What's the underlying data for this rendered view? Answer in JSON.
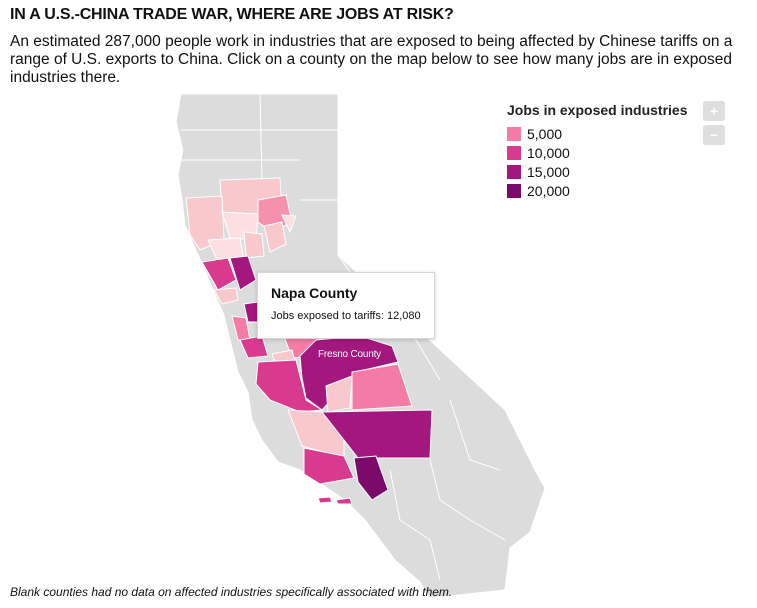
{
  "header": {
    "title": "IN A U.S.-CHINA TRADE WAR, WHERE ARE JOBS AT RISK?",
    "subtitle": "An estimated 287,000 people work in industries that are exposed to being affected by Chinese tariffs on a range of U.S. exports to China. Click on a county on the map below to see how many jobs are in exposed industries there."
  },
  "legend": {
    "title": "Jobs in exposed industries",
    "items": [
      {
        "label": "5,000",
        "color": "#f47ba6"
      },
      {
        "label": "10,000",
        "color": "#d93a8e"
      },
      {
        "label": "15,000",
        "color": "#a3177f"
      },
      {
        "label": "20,000",
        "color": "#7a0a6b"
      }
    ]
  },
  "zoom": {
    "in_label": "+",
    "out_label": "−"
  },
  "tooltip": {
    "county": "Napa County",
    "text": "Jobs exposed to tariffs: 12,080"
  },
  "map_label": "Fresno County",
  "footnote": "Blank counties had no data on affected industries specifically associated with them.",
  "colors": {
    "no_data": "#dcdcdc",
    "light": "#f9c8cc",
    "lighter": "#fbdfe1",
    "mid": "#f590ad",
    "pink": "#f47ba6",
    "magenta": "#d93a8e",
    "purple": "#a3177f",
    "dark": "#7a0a6b"
  }
}
